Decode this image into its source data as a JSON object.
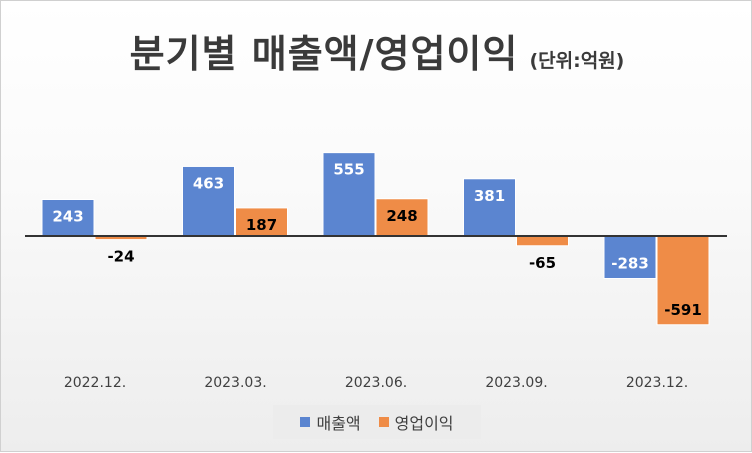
{
  "title": "분기별 매출액/영업이익",
  "unit_note": "(단위:억원)",
  "colors": {
    "revenue": "#5b85d0",
    "operating_income": "#ef8c47"
  },
  "chart_data": {
    "type": "bar",
    "title": "분기별 매출액/영업이익",
    "subtitle": "(단위:억원)",
    "categories": [
      "2022.12.",
      "2023.03.",
      "2023.06.",
      "2023.09.",
      "2023.12."
    ],
    "series": [
      {
        "name": "매출액",
        "values": [
          243,
          463,
          555,
          381,
          -283
        ]
      },
      {
        "name": "영업이익",
        "values": [
          -24,
          187,
          248,
          -65,
          -591
        ]
      }
    ],
    "data_labels": true,
    "xlabel": "",
    "ylabel": "",
    "ylim": [
      -591,
      555
    ],
    "grid": false,
    "legend": "bottom"
  }
}
